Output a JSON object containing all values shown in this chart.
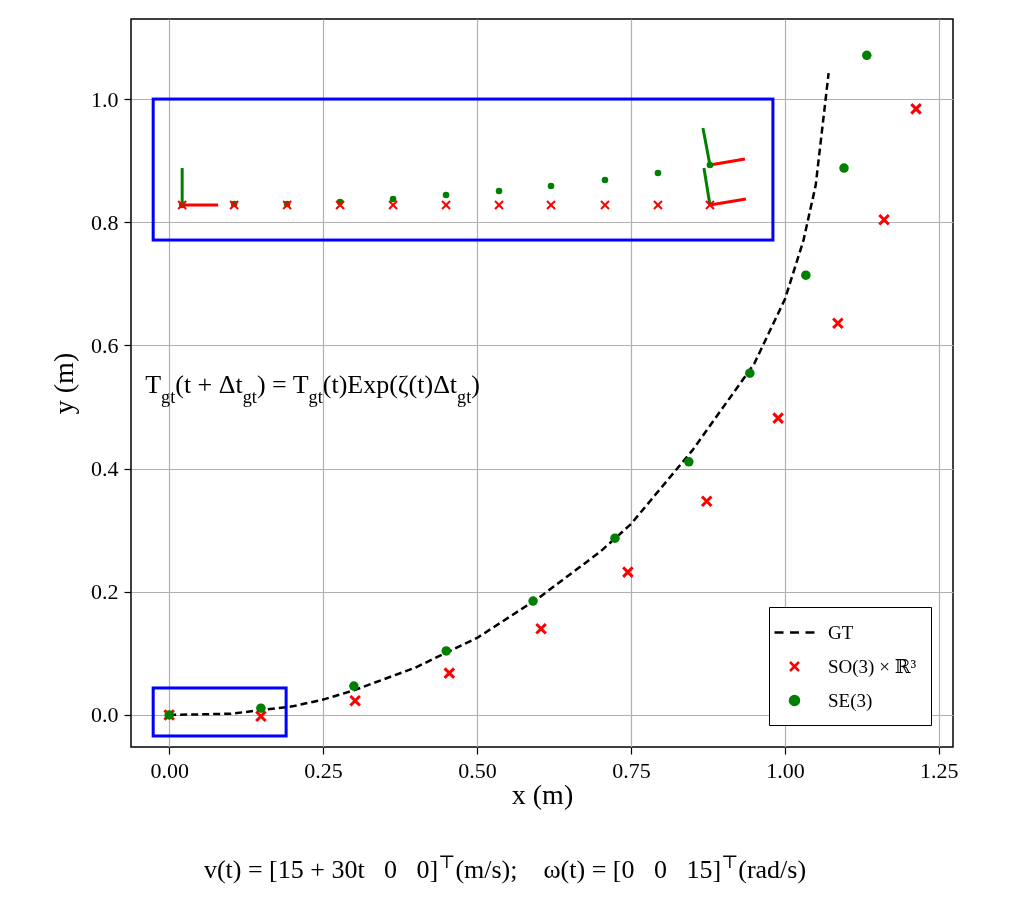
{
  "chart_data": {
    "type": "scatter",
    "xlabel": "x (m)",
    "ylabel": "y (m)",
    "xlim": [
      -0.062,
      1.273
    ],
    "ylim": [
      -0.052,
      1.13
    ],
    "xticks": [
      {
        "value": 0,
        "label": "0.00"
      },
      {
        "value": 0.25,
        "label": "0.25"
      },
      {
        "value": 0.5,
        "label": "0.50"
      },
      {
        "value": 0.75,
        "label": "0.75"
      },
      {
        "value": 1,
        "label": "1.00"
      },
      {
        "value": 1.25,
        "label": "1.25"
      }
    ],
    "yticks": [
      {
        "value": 0,
        "label": "0.0"
      },
      {
        "value": 0.2,
        "label": "0.2"
      },
      {
        "value": 0.4,
        "label": "0.4"
      },
      {
        "value": 0.6,
        "label": "0.6"
      },
      {
        "value": 0.8,
        "label": "0.8"
      },
      {
        "value": 1,
        "label": "1.0"
      }
    ],
    "grid": true,
    "legend": "bottom right",
    "annotations": [
      "T$_{gt}$(t + Δt$_{gt}$) = T$_{gt}$(t)Exp(ζ(t)Δt$_{gt}$)",
      "v(t) = [15 + 30t   0   0]$^{⊤}$(m/s);    ω(t) = [0   0   15]$^{⊤}$(rad/s)"
    ],
    "series": [
      {
        "name": "GT",
        "type": "line",
        "line_style": "dashed",
        "color": "#000000",
        "x": [
          0,
          0.1,
          0.2,
          0.25,
          0.3,
          0.4,
          0.5,
          0.6,
          0.7,
          0.75,
          0.85,
          0.95,
          1.0,
          1.03,
          1.05,
          1.071
        ],
        "values": [
          0,
          0.002,
          0.014,
          0.025,
          0.04,
          0.077,
          0.125,
          0.19,
          0.265,
          0.31,
          0.43,
          0.57,
          0.675,
          0.77,
          0.86,
          1.042
        ]
      },
      {
        "name": "SO(3) × ℝ³",
        "marker": "cross",
        "color": "#ff0000",
        "x": [
          0,
          0.149,
          0.302,
          0.455,
          0.604,
          0.745,
          0.873,
          0.989,
          1.086,
          1.161,
          1.213
        ],
        "values": [
          0,
          -0.002,
          0.023,
          0.068,
          0.14,
          0.232,
          0.347,
          0.482,
          0.636,
          0.804,
          0.984
        ]
      },
      {
        "name": "SE(3)",
        "marker": "circle",
        "color": "#008000",
        "x": [
          0,
          0.149,
          0.3,
          0.45,
          0.591,
          0.724,
          0.844,
          0.943,
          1.034,
          1.096,
          1.133
        ],
        "values": [
          0,
          0.011,
          0.047,
          0.104,
          0.185,
          0.287,
          0.411,
          0.555,
          0.714,
          0.888,
          1.071
        ]
      }
    ]
  }
}
